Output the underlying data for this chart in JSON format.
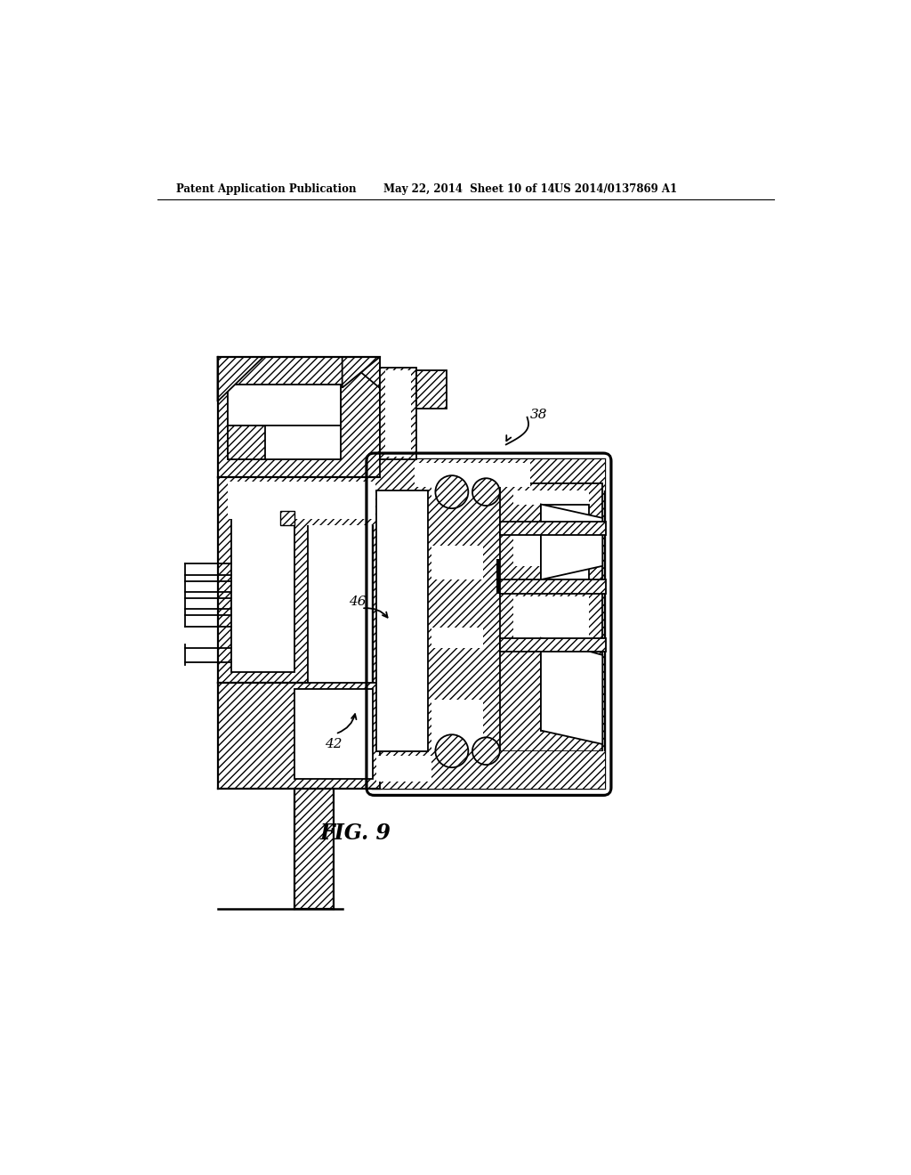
{
  "title_left": "Patent Application Publication",
  "title_center": "May 22, 2014  Sheet 10 of 14",
  "title_right": "US 2014/0137869 A1",
  "fig_label": "FIG. 9",
  "label_38": "38",
  "label_42": "42",
  "label_46": "46",
  "bg_color": "#ffffff",
  "line_color": "#000000",
  "linewidth": 1.3
}
